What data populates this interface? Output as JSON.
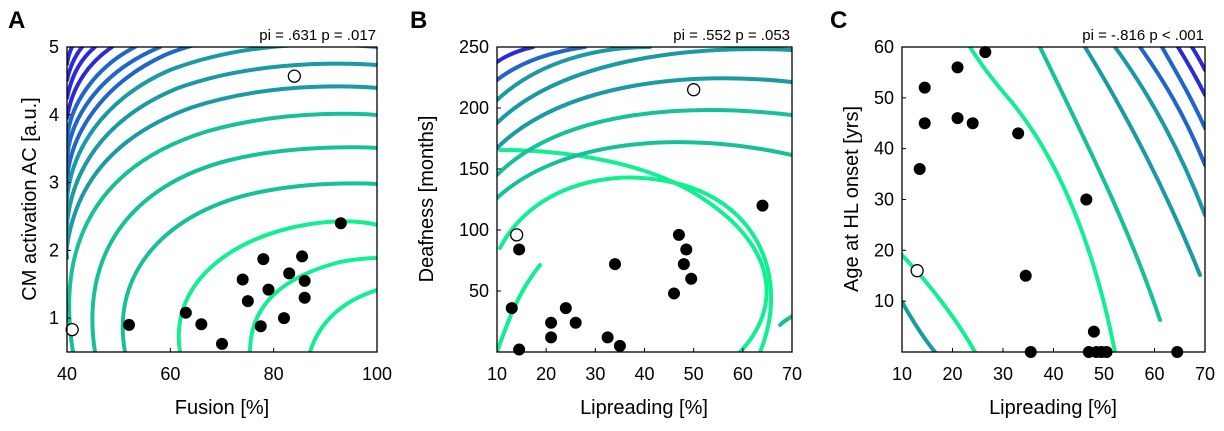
{
  "chart_data": [
    {
      "panel": "A",
      "type": "scatter",
      "annotation": "pi = .631 p = .017",
      "xlabel": "Fusion [%]",
      "ylabel": "CM activation AC [a.u.]",
      "xlim": [
        40,
        100
      ],
      "ylim": [
        0.5,
        5
      ],
      "xticks": [
        "40",
        "60",
        "80",
        "100"
      ],
      "yticks": [
        "1",
        "2",
        "3",
        "4",
        "5"
      ],
      "grid": false,
      "background": "contour lines",
      "points": [
        [
          52,
          0.9
        ],
        [
          63,
          1.08
        ],
        [
          66,
          0.91
        ],
        [
          70,
          0.62
        ],
        [
          74,
          1.57
        ],
        [
          75,
          1.25
        ],
        [
          77.5,
          0.88
        ],
        [
          78,
          1.87
        ],
        [
          79,
          1.42
        ],
        [
          82,
          1.0
        ],
        [
          83,
          1.66
        ],
        [
          85.5,
          1.91
        ],
        [
          86,
          1.55
        ],
        [
          86,
          1.3
        ],
        [
          93,
          2.4
        ]
      ],
      "outliers": [
        [
          41,
          0.83
        ],
        [
          84,
          4.57
        ]
      ]
    },
    {
      "panel": "B",
      "type": "scatter",
      "annotation": "pi = .552 p = .053",
      "xlabel": "Lipreading [%]",
      "ylabel": "Deafness [months]",
      "xlim": [
        10,
        70
      ],
      "ylim": [
        0,
        250
      ],
      "xticks": [
        "10",
        "20",
        "30",
        "40",
        "50",
        "60",
        "70"
      ],
      "yticks": [
        "50",
        "100",
        "150",
        "200",
        "250"
      ],
      "grid": false,
      "background": "contour lines",
      "points": [
        [
          14.5,
          84
        ],
        [
          13,
          36
        ],
        [
          14.5,
          2
        ],
        [
          21,
          24
        ],
        [
          21,
          12
        ],
        [
          24,
          36
        ],
        [
          26,
          24
        ],
        [
          32.5,
          12
        ],
        [
          35,
          5
        ],
        [
          34,
          72
        ],
        [
          46,
          48
        ],
        [
          47,
          96
        ],
        [
          48,
          72
        ],
        [
          48.5,
          84
        ],
        [
          49.5,
          60
        ],
        [
          64,
          120
        ]
      ],
      "outliers": [
        [
          14,
          96
        ],
        [
          50,
          215
        ]
      ]
    },
    {
      "panel": "C",
      "type": "scatter",
      "annotation": "pi = -.816 p < .001",
      "xlabel": "Lipreading [%]",
      "ylabel": "Age at HL onset [yrs]",
      "xlim": [
        10,
        70
      ],
      "ylim": [
        0,
        60
      ],
      "xticks": [
        "10",
        "20",
        "30",
        "40",
        "50",
        "60",
        "70"
      ],
      "yticks": [
        "10",
        "20",
        "30",
        "40",
        "50",
        "60"
      ],
      "grid": false,
      "background": "contour lines",
      "points": [
        [
          13.5,
          36
        ],
        [
          14.5,
          52
        ],
        [
          14.5,
          45
        ],
        [
          21,
          56
        ],
        [
          21,
          46
        ],
        [
          24,
          45
        ],
        [
          26.5,
          59
        ],
        [
          33,
          43
        ],
        [
          34.5,
          15
        ],
        [
          35.5,
          0
        ],
        [
          46.5,
          30
        ],
        [
          47,
          0
        ],
        [
          48,
          4
        ],
        [
          48.5,
          0
        ],
        [
          49.5,
          0
        ],
        [
          50.5,
          0
        ],
        [
          64.5,
          0
        ]
      ],
      "outliers": [
        [
          13,
          16
        ]
      ]
    }
  ],
  "colors": {
    "dark_blue": "#2a2bd8",
    "mid_blue": "#1f66c8",
    "teal": "#1a9aa2",
    "sea_green": "#18c09a",
    "bright_green": "#10f090",
    "marker": "#000000",
    "outlier_fill": "#ffffff"
  }
}
